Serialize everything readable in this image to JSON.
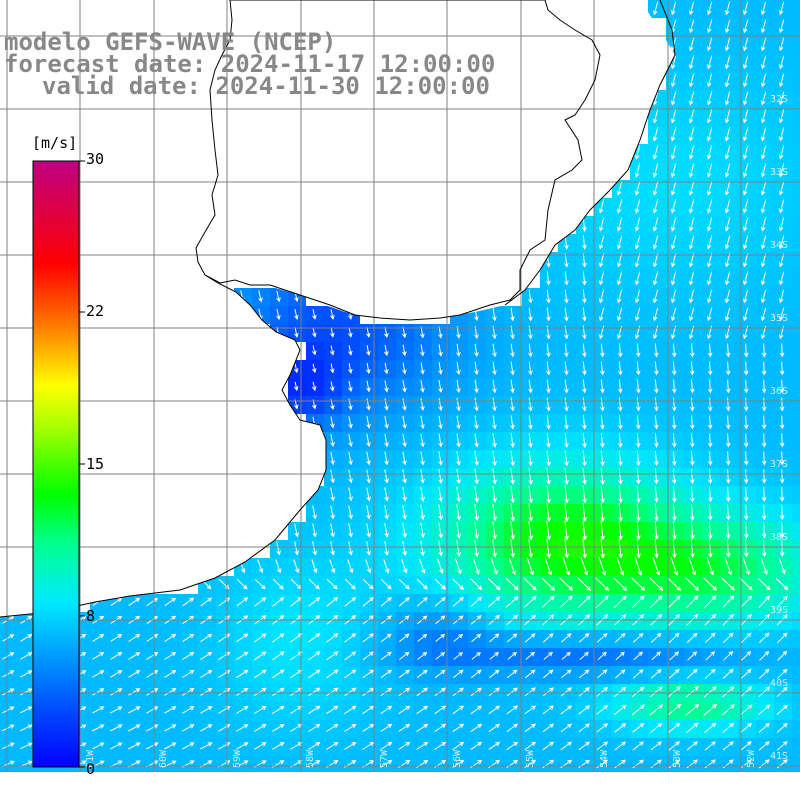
{
  "header": {
    "line1": "modelo GEFS-WAVE (NCEP)",
    "line2": "forecast date: 2024-11-17 12:00:00",
    "line3": "valid date: 2024-11-30 12:00:00"
  },
  "colorbar": {
    "unit_label": "[m/s]",
    "ticks": [
      "30",
      "22",
      "15",
      "8",
      "0"
    ],
    "colors": [
      "#0000ff",
      "#0050ff",
      "#00a0ff",
      "#00e8ff",
      "#00ff80",
      "#00ff00",
      "#a0ff00",
      "#ffff00",
      "#ff8000",
      "#ff0000",
      "#ff0060",
      "#c00080"
    ]
  },
  "map": {
    "land_color": "#ffffff",
    "grid_color": "#808080",
    "coast_color": "#000000",
    "arrow_color": "#ffffff",
    "lat_labels": [
      "32S",
      "33S",
      "34S",
      "35S",
      "36S",
      "37S",
      "38S",
      "39S",
      "40S",
      "41S"
    ],
    "lon_labels": [
      "61W",
      "60W",
      "59W",
      "58W",
      "57W",
      "56W",
      "55W",
      "54W",
      "53W",
      "52W"
    ]
  }
}
